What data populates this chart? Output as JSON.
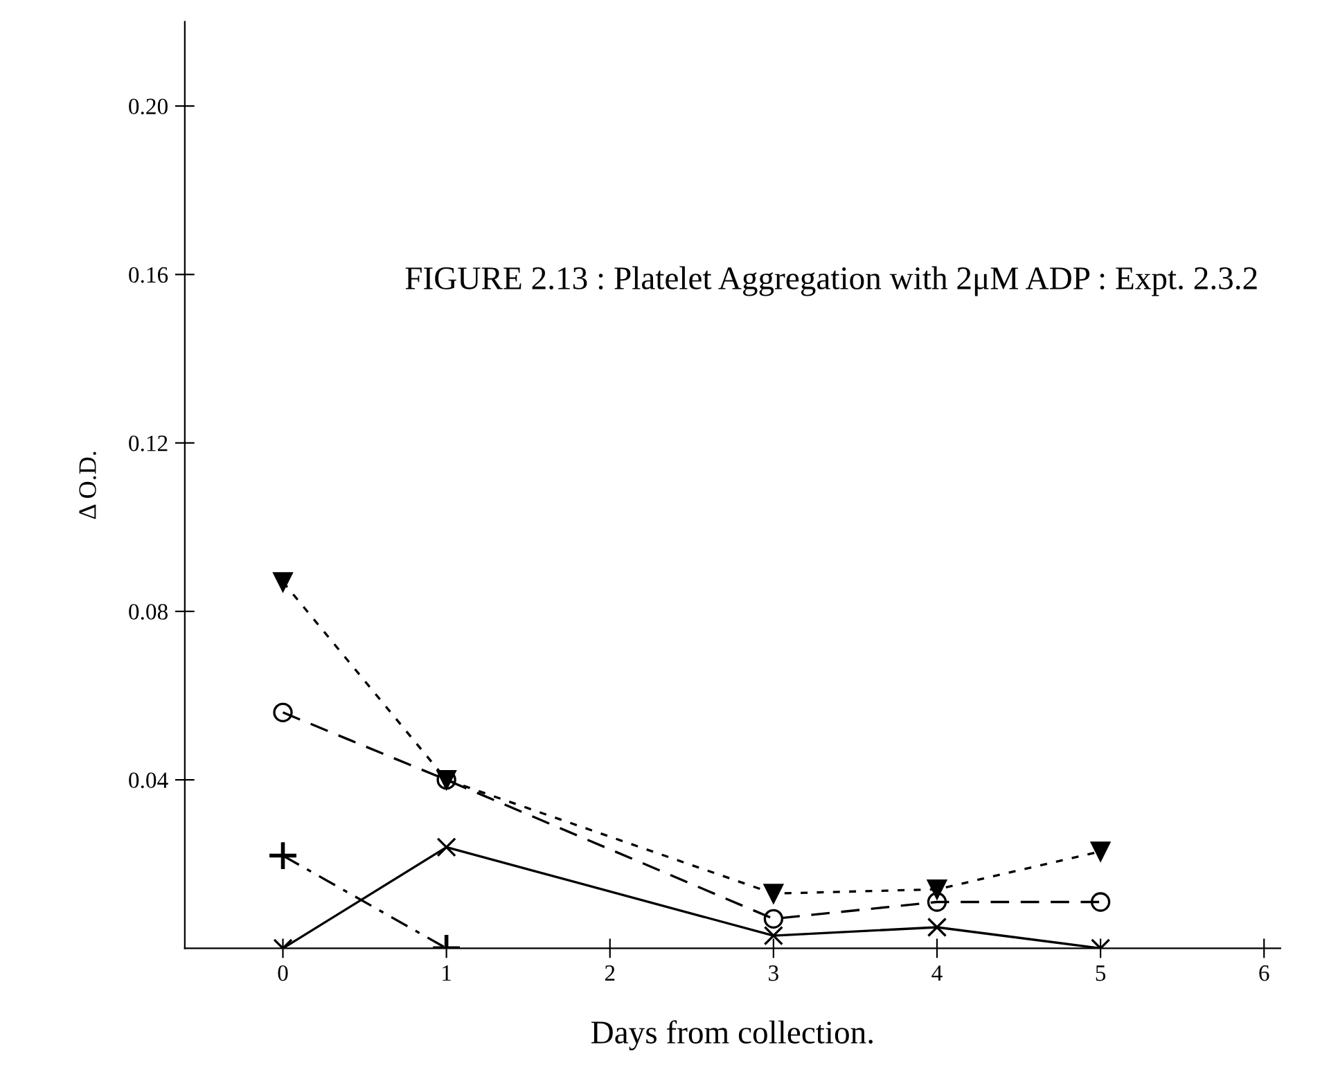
{
  "chart_data": {
    "type": "line",
    "title": "FIGURE 2.13 : Platelet Aggregation with 2μM ADP : Expt. 2.3.2",
    "xlabel": "Days from collection.",
    "ylabel": "Δ O.D.",
    "xlim": [
      -0.6,
      6.1
    ],
    "xticks": [
      0,
      1,
      2,
      3,
      4,
      5,
      6
    ],
    "ylim": [
      0,
      0.22
    ],
    "yticks": [
      {
        "value": 0.04,
        "label": "0.04"
      },
      {
        "value": 0.08,
        "label": "0.08"
      },
      {
        "value": 0.12,
        "label": "0.12"
      },
      {
        "value": 0.16,
        "label": "0.16"
      },
      {
        "value": 0.2,
        "label": "0.20"
      }
    ],
    "grid": false,
    "legend": false,
    "series": [
      {
        "color": "#000000",
        "marker": "triangle",
        "line_style": "dotted",
        "x": [
          0,
          1,
          3,
          4,
          5
        ],
        "values": [
          0.087,
          0.04,
          0.013,
          0.014,
          0.023
        ]
      },
      {
        "color": "#000000",
        "marker": "circle",
        "line_style": "dashed",
        "x": [
          0,
          1,
          3,
          4,
          5
        ],
        "values": [
          0.056,
          0.04,
          0.007,
          0.011,
          0.011
        ]
      },
      {
        "color": "#000000",
        "marker": "cross",
        "line_style": "solid",
        "x": [
          0,
          1,
          3,
          4,
          5
        ],
        "values": [
          0,
          0.024,
          0.003,
          0.005,
          0
        ]
      },
      {
        "color": "#000000",
        "marker": "plus",
        "line_style": "dashdot",
        "x": [
          0,
          1
        ],
        "values": [
          0.022,
          0
        ]
      }
    ]
  }
}
